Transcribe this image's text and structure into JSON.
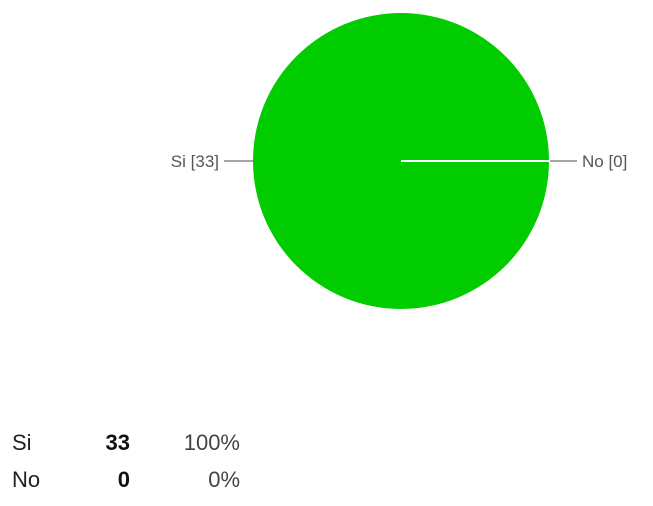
{
  "chart_data": {
    "type": "pie",
    "categories": [
      "Si",
      "No"
    ],
    "values": [
      33,
      0
    ],
    "percentages": [
      "100%",
      "0%"
    ],
    "slice_labels": [
      "Si [33]",
      "No [0]"
    ],
    "colors": [
      "#00cc00",
      "#ffffff"
    ],
    "legend": "none"
  }
}
